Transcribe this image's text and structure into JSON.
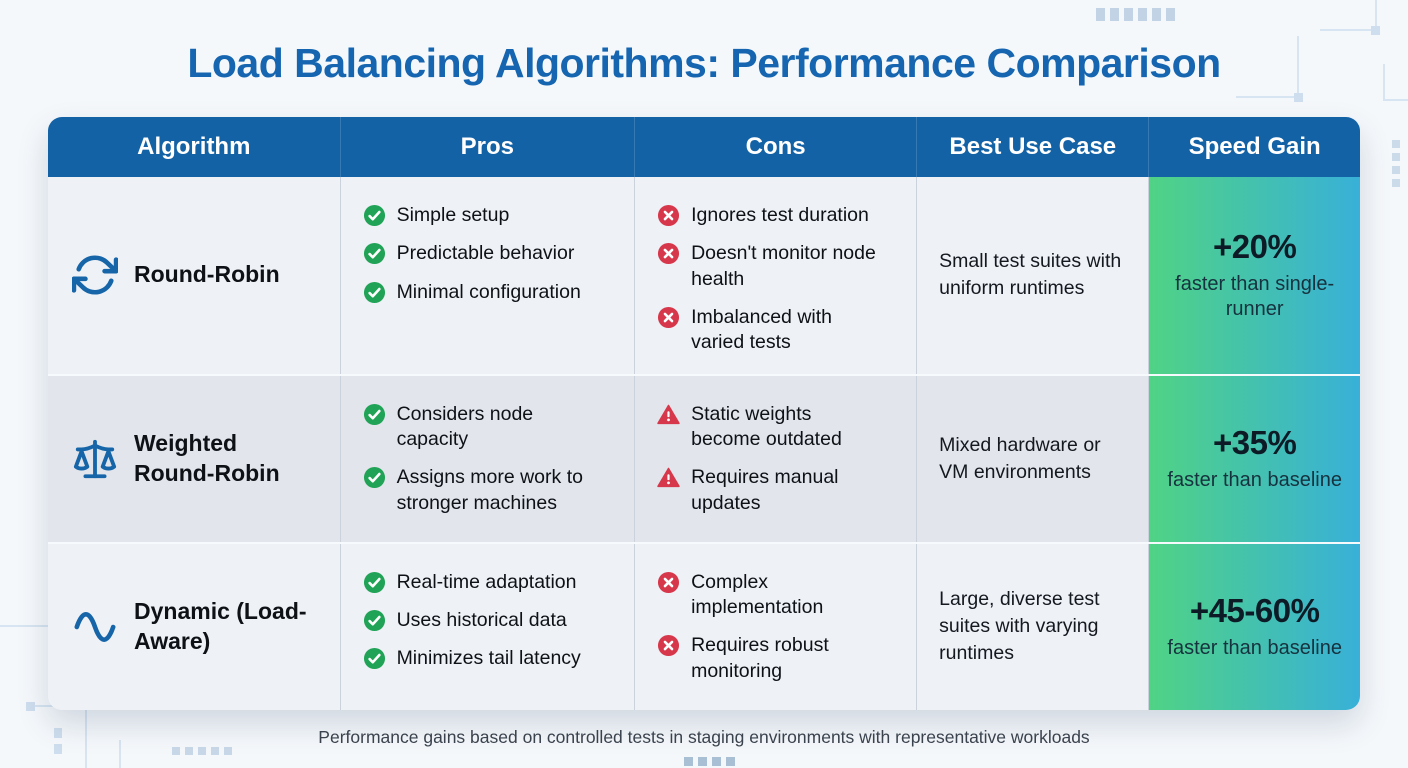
{
  "title": "Load Balancing Algorithms: Performance Comparison",
  "footnote": "Performance gains based on controlled tests in staging environments with representative workloads",
  "colors": {
    "title_blue": "#1565b0",
    "header_blue": "#1362a6",
    "icon_blue": "#1565a8",
    "check_green": "#21a357",
    "alert_red": "#d7374a",
    "gain_gradient_start": "#50d385",
    "gain_gradient_end": "#38b0d8"
  },
  "table": {
    "columns": [
      "Algorithm",
      "Pros",
      "Cons",
      "Best Use Case",
      "Speed Gain"
    ],
    "rows": [
      {
        "algorithm": {
          "name": "Round-Robin",
          "icon": "cycle-icon"
        },
        "pros": [
          {
            "icon": "check",
            "text": "Simple setup"
          },
          {
            "icon": "check",
            "text": "Predictable behavior"
          },
          {
            "icon": "check",
            "text": "Minimal configuration"
          }
        ],
        "cons": [
          {
            "icon": "cross",
            "text": "Ignores test duration"
          },
          {
            "icon": "cross",
            "text": "Doesn't monitor node health"
          },
          {
            "icon": "cross",
            "text": "Imbalanced with varied tests"
          }
        ],
        "best_use_case": "Small test suites with uniform runtimes",
        "speed_gain": {
          "value": "+20%",
          "caption": "faster than single-runner"
        }
      },
      {
        "algorithm": {
          "name": "Weighted Round-Robin",
          "icon": "scale-icon"
        },
        "pros": [
          {
            "icon": "check",
            "text": "Considers node capacity"
          },
          {
            "icon": "check",
            "text": "Assigns more work to stronger machines"
          }
        ],
        "cons": [
          {
            "icon": "warning",
            "text": "Static weights become outdated"
          },
          {
            "icon": "warning",
            "text": "Requires manual updates"
          }
        ],
        "best_use_case": "Mixed hardware or VM environments",
        "speed_gain": {
          "value": "+35%",
          "caption": "faster than baseline"
        }
      },
      {
        "algorithm": {
          "name": "Dynamic (Load-Aware)",
          "icon": "wave-icon"
        },
        "pros": [
          {
            "icon": "check",
            "text": "Real-time adaptation"
          },
          {
            "icon": "check",
            "text": "Uses historical data"
          },
          {
            "icon": "check",
            "text": "Minimizes tail latency"
          }
        ],
        "cons": [
          {
            "icon": "cross",
            "text": "Complex implementation"
          },
          {
            "icon": "cross",
            "text": "Requires robust monitoring"
          }
        ],
        "best_use_case": "Large, diverse test suites with varying runtimes",
        "speed_gain": {
          "value": "+45-60%",
          "caption": "faster than baseline"
        }
      }
    ]
  },
  "chart_data": {
    "type": "table",
    "title": "Load Balancing Algorithms: Performance Comparison",
    "columns": [
      "Algorithm",
      "Pros",
      "Cons",
      "Best Use Case",
      "Speed Gain"
    ],
    "rows": [
      [
        "Round-Robin",
        "Simple setup; Predictable behavior; Minimal configuration",
        "Ignores test duration; Doesn't monitor node health; Imbalanced with varied tests",
        "Small test suites with uniform runtimes",
        "+20% faster than single-runner"
      ],
      [
        "Weighted Round-Robin",
        "Considers node capacity; Assigns more work to stronger machines",
        "Static weights become outdated; Requires manual updates",
        "Mixed hardware or VM environments",
        "+35% faster than baseline"
      ],
      [
        "Dynamic (Load-Aware)",
        "Real-time adaptation; Uses historical data; Minimizes tail latency",
        "Complex implementation; Requires robust monitoring",
        "Large, diverse test suites with varying runtimes",
        "+45-60% faster than baseline"
      ]
    ],
    "speed_gain_pct": {
      "Round-Robin": [
        20,
        20
      ],
      "Weighted Round-Robin": [
        35,
        35
      ],
      "Dynamic (Load-Aware)": [
        45,
        60
      ]
    },
    "footnote": "Performance gains based on controlled tests in staging environments with representative workloads"
  }
}
